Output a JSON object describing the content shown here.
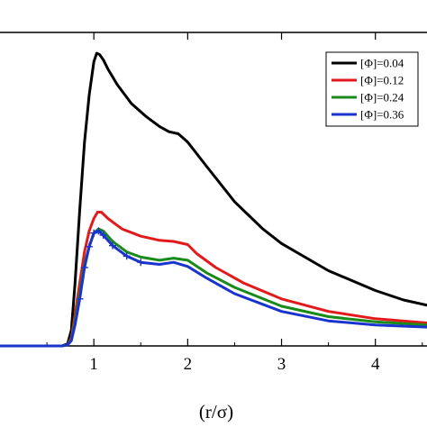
{
  "chart_data": {
    "type": "line",
    "xlabel": "(r/σ)",
    "ylabel": "",
    "xlim": [
      0,
      4.55
    ],
    "ylim": [
      0.0,
      3.0
    ],
    "x_ticks": [
      1,
      2,
      3,
      4
    ],
    "x_tick_labels": [
      "1",
      "2",
      "3",
      "4"
    ],
    "grid": false,
    "legend_position": "top-right",
    "series": [
      {
        "name": "[Φ]=0.04",
        "color": "#000000",
        "x": [
          0,
          0.66,
          0.72,
          0.76,
          0.8,
          0.85,
          0.9,
          0.95,
          1.0,
          1.03,
          1.06,
          1.1,
          1.15,
          1.25,
          1.4,
          1.55,
          1.7,
          1.8,
          1.9,
          2.0,
          2.2,
          2.5,
          2.8,
          3.0,
          3.5,
          4.0,
          4.3,
          4.55
        ],
        "y": [
          0,
          0,
          0.02,
          0.15,
          0.6,
          1.3,
          1.95,
          2.4,
          2.72,
          2.8,
          2.79,
          2.74,
          2.65,
          2.5,
          2.32,
          2.2,
          2.1,
          2.05,
          2.03,
          1.95,
          1.72,
          1.38,
          1.12,
          0.98,
          0.72,
          0.53,
          0.44,
          0.39
        ]
      },
      {
        "name": "[Φ]=0.12",
        "color": "#e31a1c",
        "x": [
          0,
          0.66,
          0.72,
          0.76,
          0.8,
          0.85,
          0.9,
          0.95,
          1.0,
          1.04,
          1.08,
          1.15,
          1.3,
          1.5,
          1.7,
          1.85,
          2.0,
          2.1,
          2.3,
          2.6,
          3.0,
          3.5,
          4.0,
          4.55
        ],
        "y": [
          0,
          0,
          0.01,
          0.08,
          0.3,
          0.6,
          0.9,
          1.1,
          1.22,
          1.28,
          1.28,
          1.22,
          1.12,
          1.05,
          1.01,
          1.0,
          0.97,
          0.88,
          0.75,
          0.6,
          0.45,
          0.33,
          0.26,
          0.22
        ]
      },
      {
        "name": "[Φ]=0.24",
        "color": "#1a8a1a",
        "x": [
          0,
          0.66,
          0.72,
          0.76,
          0.8,
          0.85,
          0.9,
          0.95,
          1.0,
          1.05,
          1.1,
          1.2,
          1.35,
          1.5,
          1.7,
          1.85,
          2.0,
          2.2,
          2.5,
          3.0,
          3.5,
          4.0,
          4.55
        ],
        "y": [
          0,
          0,
          0.01,
          0.06,
          0.24,
          0.5,
          0.78,
          0.95,
          1.08,
          1.12,
          1.1,
          1.0,
          0.9,
          0.85,
          0.82,
          0.84,
          0.82,
          0.7,
          0.56,
          0.38,
          0.28,
          0.23,
          0.2
        ]
      },
      {
        "name": "[Φ]=0.36",
        "color": "#1a33cc",
        "x": [
          0,
          0.66,
          0.72,
          0.76,
          0.8,
          0.85,
          0.9,
          0.95,
          1.0,
          1.05,
          1.1,
          1.2,
          1.35,
          1.5,
          1.7,
          1.85,
          2.0,
          2.2,
          2.5,
          3.0,
          3.5,
          4.0,
          4.55
        ],
        "y": [
          0,
          0,
          0.01,
          0.05,
          0.2,
          0.45,
          0.75,
          0.95,
          1.08,
          1.1,
          1.06,
          0.96,
          0.86,
          0.8,
          0.78,
          0.8,
          0.76,
          0.65,
          0.5,
          0.33,
          0.24,
          0.2,
          0.18
        ]
      }
    ]
  }
}
